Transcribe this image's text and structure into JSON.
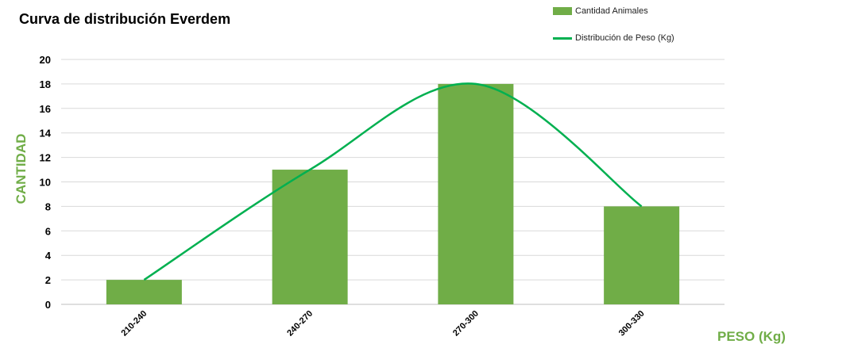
{
  "chart_data": {
    "type": "bar",
    "title": "Curva de distribución Everdem",
    "xlabel": "PESO (Kg)",
    "ylabel": "CANTIDAD",
    "categories": [
      "210-240",
      "240-270",
      "270-300",
      "300-330"
    ],
    "series": [
      {
        "name": "Cantidad Animales",
        "type": "bar",
        "values": [
          2,
          11,
          18,
          8
        ],
        "color": "#70AD47"
      },
      {
        "name": "Distribución de Peso (Kg)",
        "type": "line",
        "smooth": true,
        "values": [
          2,
          11,
          18,
          8
        ],
        "color": "#00B050"
      }
    ],
    "ylim": [
      0,
      20
    ],
    "yticks": [
      0,
      2,
      4,
      6,
      8,
      10,
      12,
      14,
      16,
      18,
      20
    ],
    "grid": true,
    "legend": "top-right"
  },
  "colors": {
    "axis_label": "#70AD47",
    "gridline": "#D9D9D9"
  }
}
